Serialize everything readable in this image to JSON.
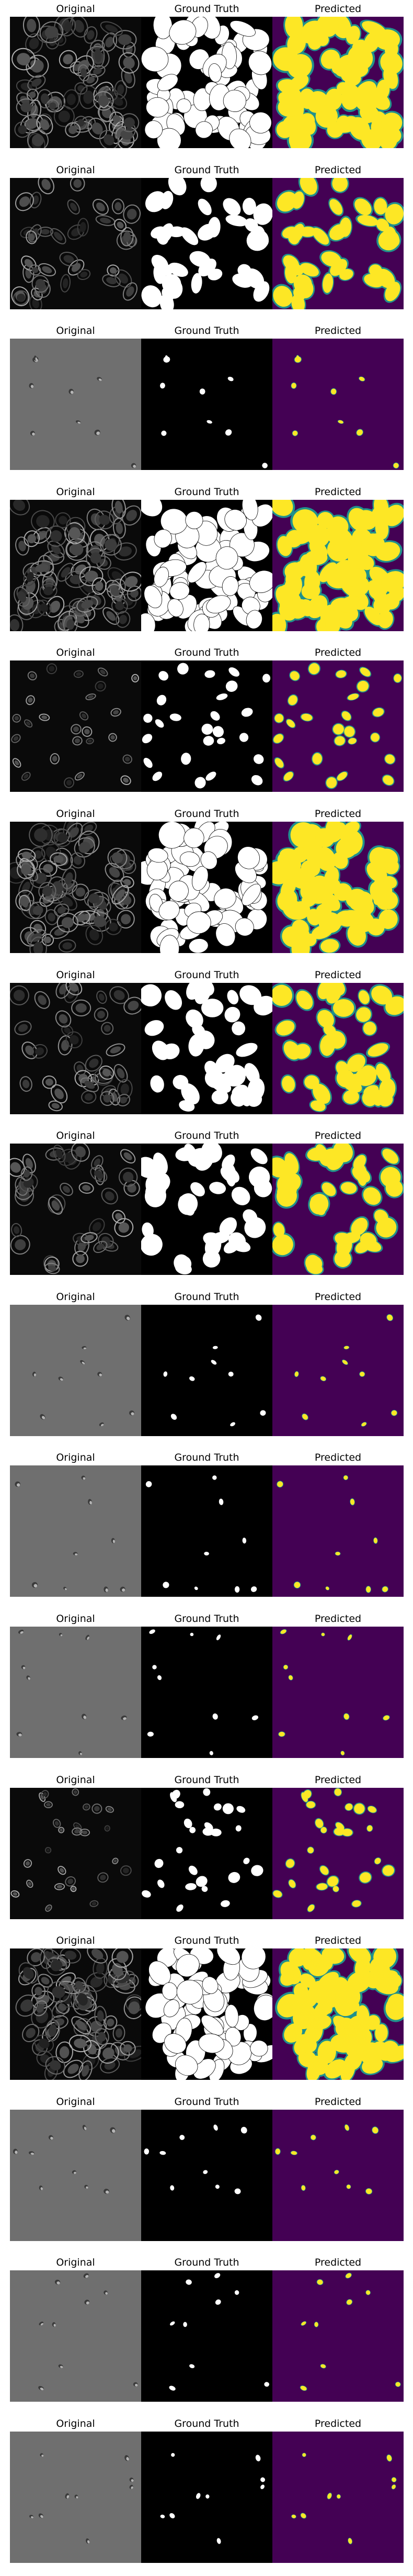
{
  "titles": {
    "original": "Original",
    "ground_truth": "Ground Truth",
    "predicted": "Predicted"
  },
  "colors": {
    "orig_dark": "#0a0a0a",
    "orig_gray": "#6f6f6f",
    "gt_bg": "#000000",
    "gt_fg": "#ffffff",
    "pred_bg": "#440154",
    "pred_fg": "#fde725",
    "pred_edge": "#21918c"
  },
  "rows": [
    {
      "type": "dense",
      "modality": "fluorescence",
      "coverage": 0.8
    },
    {
      "type": "medium",
      "modality": "fluorescence",
      "coverage": 0.45
    },
    {
      "type": "sparse",
      "modality": "brightfield",
      "coverage": 0.05
    },
    {
      "type": "dense",
      "modality": "fluorescence",
      "coverage": 0.75
    },
    {
      "type": "scattered",
      "modality": "fluorescence",
      "coverage": 0.15
    },
    {
      "type": "dense",
      "modality": "fluorescence",
      "coverage": 0.55
    },
    {
      "type": "medium",
      "modality": "fluorescence",
      "coverage": 0.35
    },
    {
      "type": "medium",
      "modality": "fluorescence",
      "coverage": 0.45
    },
    {
      "type": "sparse",
      "modality": "brightfield",
      "coverage": 0.06
    },
    {
      "type": "sparse",
      "modality": "brightfield",
      "coverage": 0.05
    },
    {
      "type": "sparse",
      "modality": "brightfield",
      "coverage": 0.05
    },
    {
      "type": "scattered",
      "modality": "fluorescence",
      "coverage": 0.2
    },
    {
      "type": "dense",
      "modality": "fluorescence",
      "coverage": 0.65
    },
    {
      "type": "sparse",
      "modality": "brightfield",
      "coverage": 0.05
    },
    {
      "type": "sparse",
      "modality": "brightfield",
      "coverage": 0.05
    },
    {
      "type": "sparse",
      "modality": "brightfield",
      "coverage": 0.05
    }
  ]
}
